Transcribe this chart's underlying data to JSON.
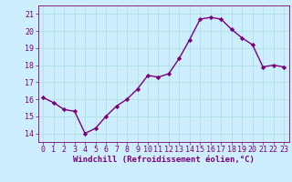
{
  "x": [
    0,
    1,
    2,
    3,
    4,
    5,
    6,
    7,
    8,
    9,
    10,
    11,
    12,
    13,
    14,
    15,
    16,
    17,
    18,
    19,
    20,
    21,
    22,
    23
  ],
  "y": [
    16.1,
    15.8,
    15.4,
    15.3,
    14.0,
    14.3,
    15.0,
    15.6,
    16.0,
    16.6,
    17.4,
    17.3,
    17.5,
    18.4,
    19.5,
    20.7,
    20.8,
    20.7,
    20.1,
    19.6,
    19.2,
    17.9,
    18.0,
    17.9
  ],
  "line_color": "#7b007b",
  "marker": "D",
  "marker_size": 2.2,
  "bg_color": "#cceeff",
  "grid_color": "#aadddd",
  "xlabel": "Windchill (Refroidissement éolien,°C)",
  "xlabel_color": "#7b007b",
  "tick_color": "#7b007b",
  "ylim": [
    13.5,
    21.5
  ],
  "yticks": [
    14,
    15,
    16,
    17,
    18,
    19,
    20,
    21
  ],
  "xlim": [
    -0.5,
    23.5
  ],
  "xticks": [
    0,
    1,
    2,
    3,
    4,
    5,
    6,
    7,
    8,
    9,
    10,
    11,
    12,
    13,
    14,
    15,
    16,
    17,
    18,
    19,
    20,
    21,
    22,
    23
  ],
  "spine_color": "#7b007b",
  "linewidth": 1.0,
  "font_size": 6.0,
  "xlabel_fontsize": 6.5
}
